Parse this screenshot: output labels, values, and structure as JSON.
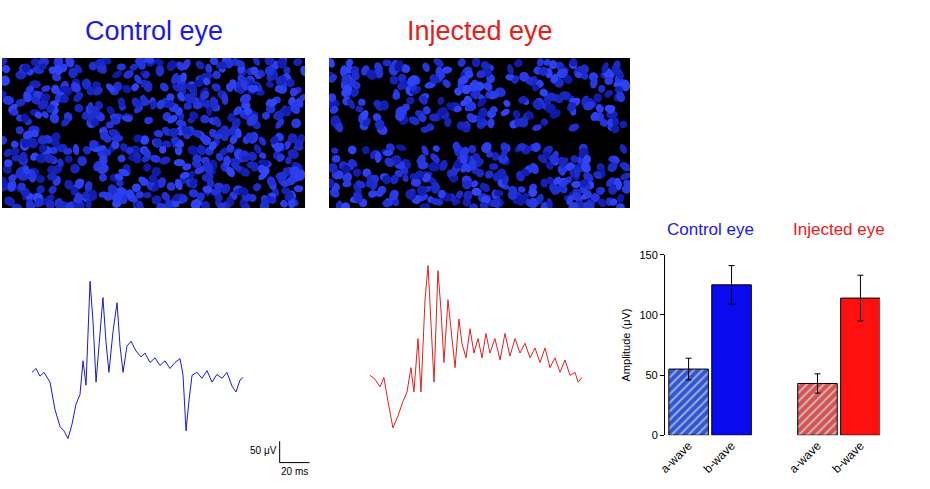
{
  "headings": [
    {
      "text": "Control eye",
      "color": "#1a1ae6"
    },
    {
      "text": "Injected eye",
      "color": "#e6201a"
    }
  ],
  "chart_data": [
    {
      "type": "line",
      "tick_labels": false,
      "grid": false,
      "x": [
        0,
        2.7,
        5.3,
        8,
        12,
        15.3,
        18.7,
        21.3,
        24,
        26.7,
        29.3,
        32,
        34,
        36,
        38.7,
        40.7,
        42.7,
        45.3,
        47.3,
        49.3,
        51.3,
        54,
        56.7,
        58.7,
        60.7,
        63.3,
        66,
        69.3,
        72.7,
        75.3,
        78.7,
        82,
        85.3,
        88.7,
        92,
        95.3,
        98.7,
        100.7,
        102.7,
        104.7,
        106.7,
        110,
        113.3,
        116.7,
        120,
        123.3,
        126.7,
        130,
        133.3,
        136,
        138.7,
        140.7
      ],
      "series": [
        {
          "color": "#1a1acc",
          "values": [
            7,
            16,
            -2,
            7,
            -16,
            -80,
            -120,
            -130,
            -148,
            -114,
            -68,
            -45,
            34,
            -23,
            220,
            125,
            -16,
            102,
            182,
            80,
            7,
            102,
            170,
            68,
            7,
            68,
            80,
            57,
            43,
            52,
            30,
            41,
            23,
            34,
            16,
            30,
            39,
            0,
            -130,
            -57,
            0,
            7,
            -7,
            11,
            -16,
            2,
            -7,
            7,
            -25,
            -39,
            -11,
            -5
          ]
        }
      ],
      "xlim": [
        -1,
        187
      ],
      "ylim": [
        -210,
        265
      ],
      "scale_bar": {
        "x": 20,
        "x_label": "20 ms",
        "y": 50,
        "y_label": "50 μV"
      }
    },
    {
      "type": "line",
      "tick_labels": false,
      "grid": false,
      "x": [
        0,
        3.3,
        6.7,
        9.3,
        12,
        15.3,
        18.7,
        22,
        24.7,
        27.3,
        29.3,
        32,
        34,
        36.7,
        38.7,
        40.7,
        42.7,
        45.3,
        47.3,
        49.3,
        52,
        54,
        56.7,
        59.3,
        61.3,
        64,
        66.7,
        69.3,
        72,
        74.7,
        77.3,
        80,
        83.3,
        86.7,
        90,
        93.3,
        96.7,
        100,
        103.3,
        106.7,
        110,
        113.3,
        116.7,
        120,
        123.3,
        126.7,
        130,
        133.3,
        136.7,
        138.7,
        141.3
      ],
      "series": [
        {
          "color": "#e0201f",
          "values": [
            0,
            -9,
            -27,
            -5,
            -61,
            -123,
            -95,
            -61,
            -39,
            18,
            -39,
            86,
            -39,
            177,
            257,
            109,
            -16,
            245,
            155,
            30,
            177,
            109,
            18,
            132,
            75,
            41,
            109,
            52,
            86,
            41,
            98,
            52,
            86,
            36,
            98,
            45,
            86,
            52,
            75,
            41,
            64,
            30,
            64,
            18,
            41,
            7,
            36,
            0,
            7,
            -16,
            -5
          ]
        }
      ],
      "xlim": [
        -1,
        143
      ],
      "ylim": [
        -210,
        265
      ]
    },
    {
      "type": "bar",
      "grid": false,
      "categories": [
        "a-wave",
        "b-wave",
        null,
        "a-wave",
        "b-wave"
      ],
      "series": [
        {
          "marker": "hatched",
          "colors": [
            "#3355cc",
            null,
            null,
            "#cc5555",
            null
          ],
          "values": [
            55,
            null,
            null,
            43,
            null
          ],
          "errors": [
            9,
            null,
            null,
            8,
            null
          ]
        },
        {
          "marker": "solid",
          "colors": [
            null,
            "#0a0aee",
            null,
            null,
            "#ff1010"
          ],
          "values": [
            null,
            125,
            null,
            null,
            114
          ],
          "errors": [
            null,
            16,
            null,
            null,
            19
          ]
        }
      ],
      "y_label": "Amplitude (μV)",
      "ylim": [
        0,
        150
      ],
      "yticks": [
        0,
        50,
        100,
        150
      ],
      "annotations": [
        {
          "text": "Control eye",
          "color": "#1a1ae6"
        },
        {
          "text": "Injected eye",
          "color": "#e6201a"
        }
      ]
    }
  ]
}
